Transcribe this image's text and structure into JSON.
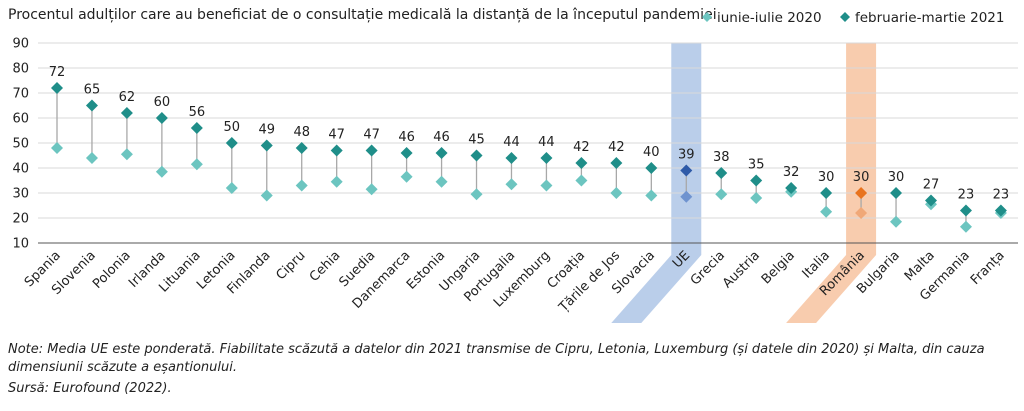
{
  "chart_data": {
    "type": "scatter",
    "title": "Procentul adulților care au beneficiat de o consultație medicală la distanță de la începutul pandemiei",
    "xlabel": "",
    "ylabel": "",
    "ylim": [
      10,
      90
    ],
    "yticks": [
      10,
      20,
      30,
      40,
      50,
      60,
      70,
      80,
      90
    ],
    "grid": true,
    "legend_position": "top-right",
    "categories": [
      "Spania",
      "Slovenia",
      "Polonia",
      "Irlanda",
      "Lituania",
      "Letonia",
      "Finlanda",
      "Cipru",
      "Cehia",
      "Suedia",
      "Danemarca",
      "Estonia",
      "Ungaria",
      "Portugalia",
      "Luxemburg",
      "Croația",
      "Țările de Jos",
      "Slovacia",
      "UE",
      "Grecia",
      "Austria",
      "Belgia",
      "Italia",
      "România",
      "Bulgaria",
      "Malta",
      "Germania",
      "Franța"
    ],
    "series": [
      {
        "name": "iunie-iulie 2020",
        "color": "#6cc5c0",
        "values": [
          48,
          44,
          45.5,
          38.5,
          41.5,
          32,
          29,
          33,
          34.5,
          31.5,
          36.5,
          34.5,
          29.5,
          33.5,
          33,
          35,
          30,
          29,
          28.5,
          29.5,
          28,
          30.5,
          22.5,
          22,
          18.5,
          25.5,
          16.5,
          22
        ]
      },
      {
        "name": "februarie-martie 2021",
        "color": "#1f8e89",
        "values": [
          72,
          65,
          62,
          60,
          56,
          50,
          49,
          48,
          47,
          47,
          46,
          46,
          45,
          44,
          44,
          42,
          42,
          40,
          39,
          38,
          35,
          32,
          30,
          30,
          30,
          27,
          23,
          23
        ]
      }
    ],
    "data_labels": [
      "72",
      "65",
      "62",
      "60",
      "56",
      "50",
      "49",
      "48",
      "47",
      "47",
      "46",
      "46",
      "45",
      "44",
      "44",
      "42",
      "42",
      "40",
      "39",
      "38",
      "35",
      "32",
      "30",
      "30",
      "30",
      "27",
      "23",
      "23"
    ],
    "highlights": [
      {
        "category": "UE",
        "band_color": "#aec6e6",
        "marker_2021": "#2e5aa8",
        "marker_2020": "#6f93cf"
      },
      {
        "category": "România",
        "band_color": "#f7c3a0",
        "marker_2021": "#e8731e",
        "marker_2020": "#f0a878"
      }
    ],
    "connector_color": "#a8a8a8"
  },
  "notes": {
    "line1": "Note: Media UE este ponderată. Fiabilitate scăzută a datelor din 2021 transmise de Cipru, Letonia, Luxemburg (și datele din 2020) și Malta, din cauza",
    "line2": "dimensiunii scăzute a eșantionului.",
    "line3": "Sursă: Eurofound (2022)."
  }
}
